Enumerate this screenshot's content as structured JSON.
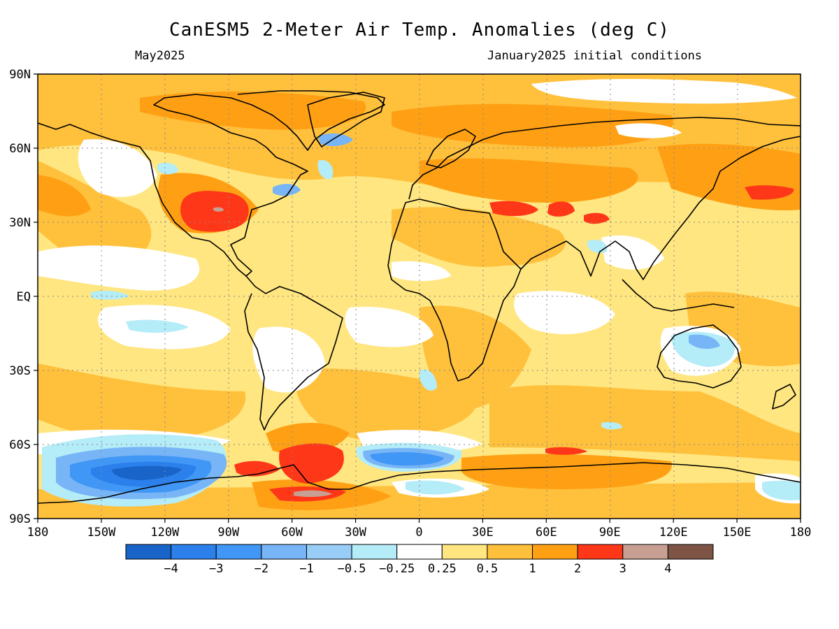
{
  "title": "CanESM5 2-Meter Air Temp. Anomalies (deg C)",
  "subtitle_left": "May2025",
  "subtitle_right": "January2025 initial conditions",
  "axes": {
    "lon_labels": [
      "180",
      "150W",
      "120W",
      "90W",
      "60W",
      "30W",
      "0",
      "30E",
      "60E",
      "90E",
      "120E",
      "150E",
      "180"
    ],
    "lat_labels": [
      "90N",
      "60N",
      "30N",
      "EQ",
      "30S",
      "60S",
      "90S"
    ],
    "lon_range": [
      -180,
      180
    ],
    "lat_range": [
      -90,
      90
    ],
    "grid": "dotted"
  },
  "colorbar": {
    "colors": [
      "#1964c8",
      "#2b80eb",
      "#4197f5",
      "#78b5f7",
      "#97cdf7",
      "#b4ecf8",
      "#ffffff",
      "#ffe680",
      "#ffc03c",
      "#ffa014",
      "#ff3719",
      "#c8a093",
      "#7d5446"
    ],
    "labels": [
      "−4",
      "−3",
      "−2",
      "−1",
      "−0.5",
      "−0.25",
      "0.25",
      "0.5",
      "1",
      "2",
      "3",
      "4"
    ]
  },
  "colors": {
    "ocean_base": "#ffe680",
    "warm": "#ffc03c",
    "warmer": "#ffa014",
    "hot": "#ff3719",
    "neutral": "#ffffff",
    "cool": "#b4ecf8",
    "cold": "#4197f5",
    "coldest": "#1964c8",
    "coast": "#000000"
  }
}
